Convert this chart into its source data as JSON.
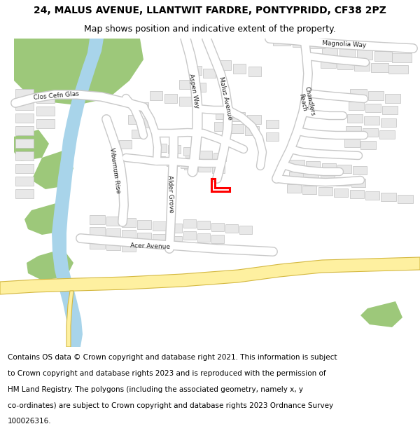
{
  "title_line1": "24, MALUS AVENUE, LLANTWIT FARDRE, PONTYPRIDD, CF38 2PZ",
  "title_line2": "Map shows position and indicative extent of the property.",
  "footer_lines": [
    "Contains OS data © Crown copyright and database right 2021. This information is subject",
    "to Crown copyright and database rights 2023 and is reproduced with the permission of",
    "HM Land Registry. The polygons (including the associated geometry, namely x, y",
    "co-ordinates) are subject to Crown copyright and database rights 2023 Ordnance Survey",
    "100026316."
  ],
  "title_fontsize": 10,
  "subtitle_fontsize": 9,
  "footer_fontsize": 7.5,
  "map_bg": "#f5f5f5",
  "road_color": "#ffffff",
  "road_outline": "#c8c8c8",
  "major_road_fill": "#fef0a0",
  "major_road_outline": "#d4b840",
  "building_color": "#e8e8e8",
  "building_outline": "#c0c0c0",
  "green_color": "#9dc87a",
  "water_color": "#a8d4ea",
  "property_color": "#ff0000",
  "property_linewidth": 2.2,
  "fig_width": 6.0,
  "fig_height": 6.25,
  "dpi": 100
}
